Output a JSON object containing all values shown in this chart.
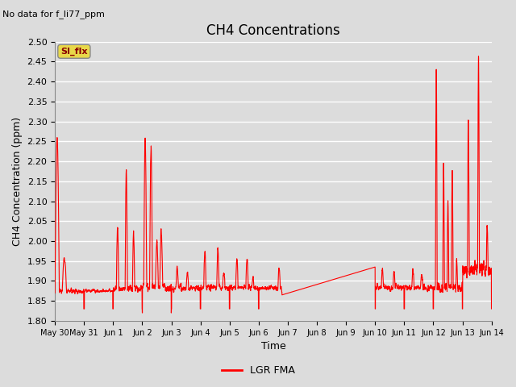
{
  "title": "CH4 Concentrations",
  "ylabel": "CH4 Concentration (ppm)",
  "xlabel": "Time",
  "ylim": [
    1.8,
    2.5
  ],
  "yticks": [
    1.8,
    1.85,
    1.9,
    1.95,
    2.0,
    2.05,
    2.1,
    2.15,
    2.2,
    2.25,
    2.3,
    2.35,
    2.4,
    2.45,
    2.5
  ],
  "line_color": "#ff0000",
  "line_width": 0.8,
  "bg_color": "#dcdcdc",
  "legend_label": "LGR FMA",
  "no_data_text": "No data for f_li77_ppm",
  "si_flx_label": "SI_flx",
  "title_fontsize": 12,
  "axis_label_fontsize": 9,
  "tick_fontsize": 8,
  "xtick_labels": [
    "May 30",
    "May 31",
    "Jun 1",
    "Jun 2",
    "Jun 3",
    "Jun 4",
    "Jun 5",
    "Jun 6",
    "Jun 7",
    "Jun 8",
    "Jun 9",
    "Jun 10",
    "Jun 11",
    "Jun 12",
    "Jun 13",
    "Jun 14"
  ],
  "xtick_positions": [
    0,
    1,
    2,
    3,
    4,
    5,
    6,
    7,
    8,
    9,
    10,
    11,
    12,
    13,
    14,
    15
  ],
  "grid_color": "#f0f0f0",
  "grid_linewidth": 1.0
}
